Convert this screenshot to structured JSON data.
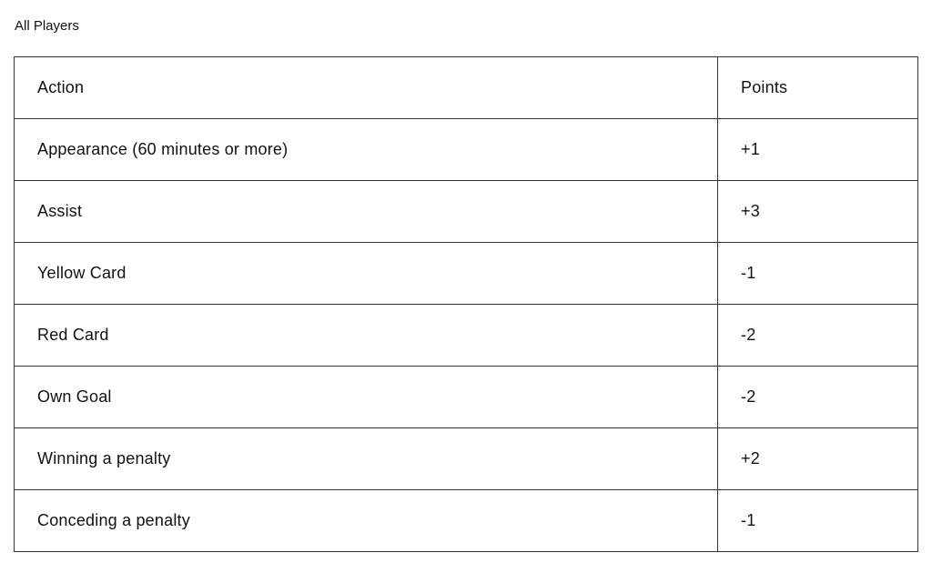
{
  "title": "All Players",
  "columns": [
    "Action",
    "Points"
  ],
  "rows": [
    {
      "action": "Appearance (60 minutes or more)",
      "points": "+1"
    },
    {
      "action": "Assist",
      "points": "+3"
    },
    {
      "action": "Yellow Card",
      "points": "-1"
    },
    {
      "action": "Red Card",
      "points": "-2"
    },
    {
      "action": "Own Goal",
      "points": "-2"
    },
    {
      "action": "Winning a penalty",
      "points": "+2"
    },
    {
      "action": "Conceding a penalty",
      "points": "-1"
    }
  ]
}
